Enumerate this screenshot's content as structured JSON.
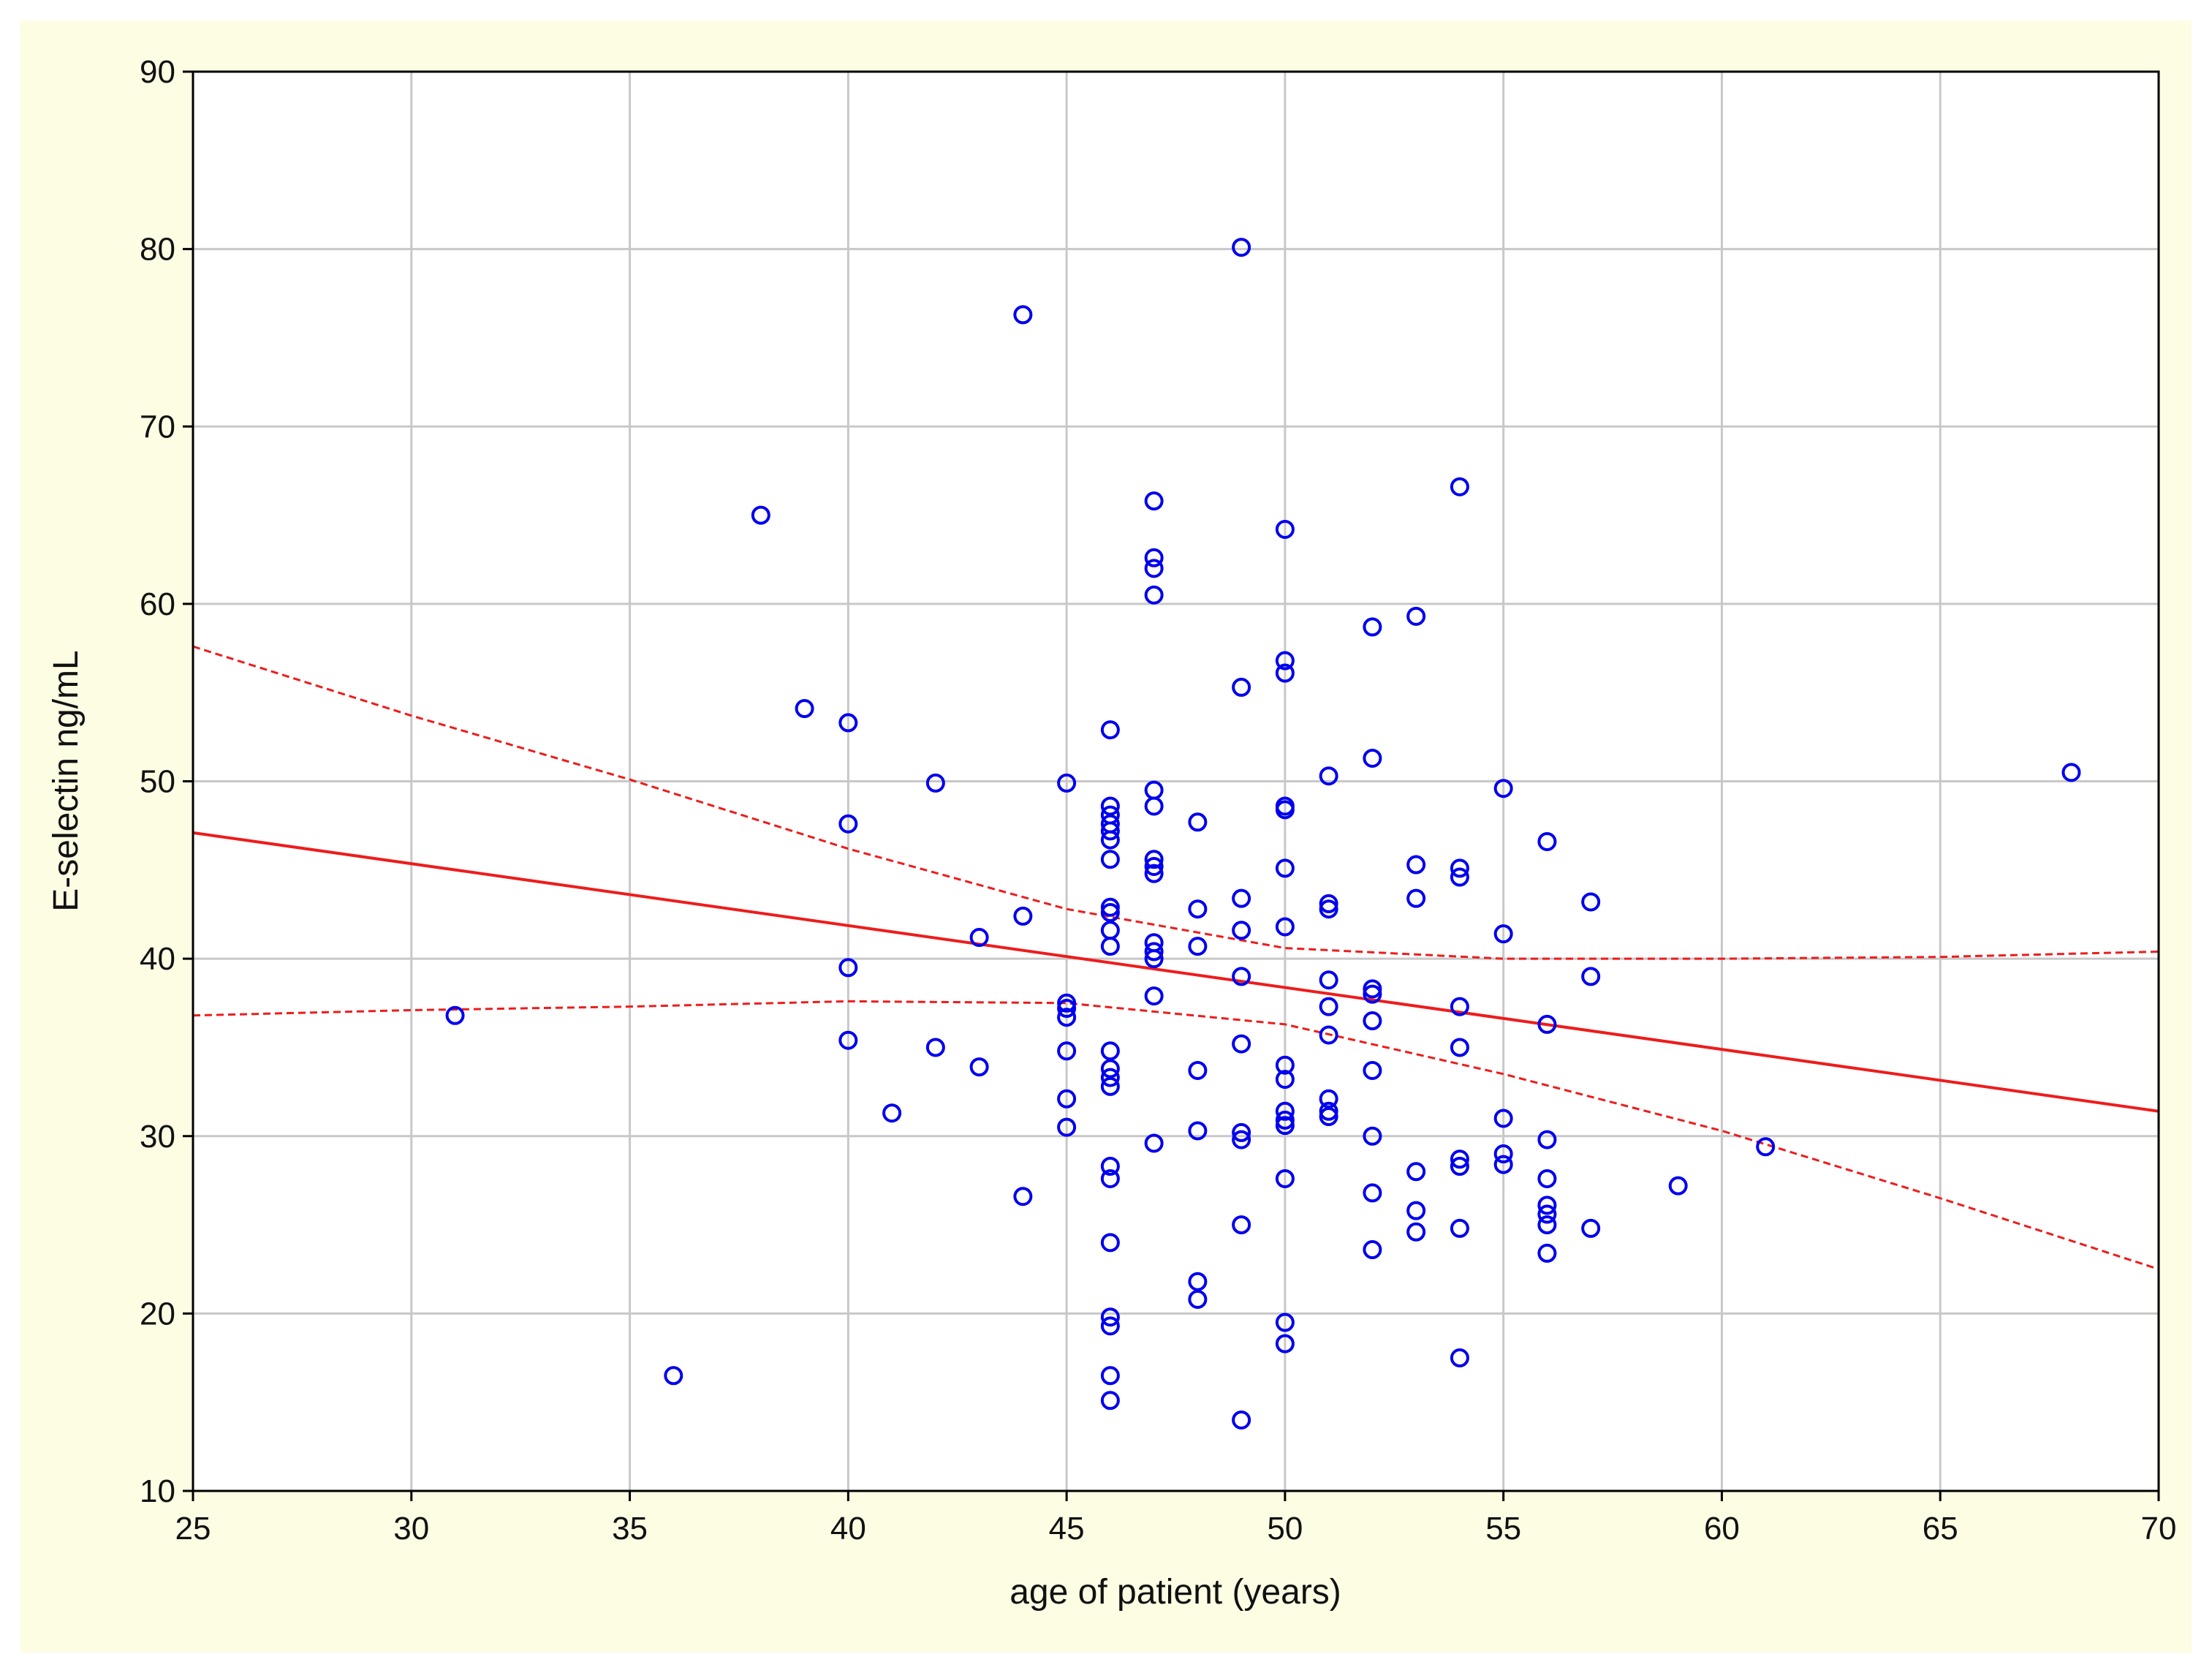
{
  "chart_data": {
    "type": "scatter",
    "title": "",
    "xlabel": "age of patient (years)",
    "ylabel": "E-selectin ng/mL",
    "xlim": [
      25,
      70
    ],
    "ylim": [
      10,
      90
    ],
    "x_ticks": [
      25,
      30,
      35,
      40,
      45,
      50,
      55,
      60,
      65,
      70
    ],
    "y_ticks": [
      10,
      20,
      30,
      40,
      50,
      60,
      70,
      80,
      90
    ],
    "grid": true,
    "colors": {
      "points": "#0000ee",
      "fit": "#ee1c1c",
      "grid": "#c8c8c8",
      "frame_bg": "#fdfde3"
    },
    "series": [
      {
        "name": "observations",
        "points": [
          [
            31,
            36.8
          ],
          [
            36,
            16.5
          ],
          [
            38,
            65
          ],
          [
            39,
            54.1
          ],
          [
            40,
            53.3
          ],
          [
            40,
            47.6
          ],
          [
            40,
            39.5
          ],
          [
            40,
            35.4
          ],
          [
            41,
            31.3
          ],
          [
            42,
            49.9
          ],
          [
            42,
            35
          ],
          [
            43,
            41.2
          ],
          [
            43,
            33.9
          ],
          [
            44,
            76.3
          ],
          [
            44,
            42.4
          ],
          [
            44,
            26.6
          ],
          [
            45,
            49.9
          ],
          [
            45,
            37.5
          ],
          [
            45,
            37.2
          ],
          [
            45,
            36.7
          ],
          [
            45,
            34.8
          ],
          [
            45,
            32.1
          ],
          [
            45,
            30.5
          ],
          [
            46,
            52.9
          ],
          [
            46,
            48.6
          ],
          [
            46,
            48.1
          ],
          [
            46,
            47.6
          ],
          [
            46,
            47.2
          ],
          [
            46,
            46.7
          ],
          [
            46,
            45.6
          ],
          [
            46,
            42.9
          ],
          [
            46,
            42.6
          ],
          [
            46,
            41.6
          ],
          [
            46,
            40.7
          ],
          [
            46,
            34.8
          ],
          [
            46,
            33.8
          ],
          [
            46,
            33.3
          ],
          [
            46,
            32.8
          ],
          [
            46,
            28.3
          ],
          [
            46,
            27.6
          ],
          [
            46,
            24
          ],
          [
            46,
            19.8
          ],
          [
            46,
            19.3
          ],
          [
            46,
            16.5
          ],
          [
            46,
            15.1
          ],
          [
            47,
            65.8
          ],
          [
            47,
            62.6
          ],
          [
            47,
            62
          ],
          [
            47,
            60.5
          ],
          [
            47,
            49.5
          ],
          [
            47,
            48.6
          ],
          [
            47,
            45.6
          ],
          [
            47,
            45.2
          ],
          [
            47,
            44.8
          ],
          [
            47,
            40.9
          ],
          [
            47,
            40.4
          ],
          [
            47,
            40
          ],
          [
            47,
            37.9
          ],
          [
            47,
            29.6
          ],
          [
            48,
            47.7
          ],
          [
            48,
            42.8
          ],
          [
            48,
            40.7
          ],
          [
            48,
            33.7
          ],
          [
            48,
            30.3
          ],
          [
            48,
            21.8
          ],
          [
            48,
            20.8
          ],
          [
            49,
            80.1
          ],
          [
            49,
            55.3
          ],
          [
            49,
            43.4
          ],
          [
            49,
            41.6
          ],
          [
            49,
            39
          ],
          [
            49,
            35.2
          ],
          [
            49,
            30.2
          ],
          [
            49,
            29.8
          ],
          [
            49,
            25
          ],
          [
            49,
            14
          ],
          [
            50,
            64.2
          ],
          [
            50,
            56.8
          ],
          [
            50,
            56.1
          ],
          [
            50,
            48.6
          ],
          [
            50,
            48.4
          ],
          [
            50,
            45.1
          ],
          [
            50,
            41.8
          ],
          [
            50,
            34
          ],
          [
            50,
            33.2
          ],
          [
            50,
            31.4
          ],
          [
            50,
            30.9
          ],
          [
            50,
            30.6
          ],
          [
            50,
            27.6
          ],
          [
            50,
            19.5
          ],
          [
            50,
            18.3
          ],
          [
            51,
            50.3
          ],
          [
            51,
            43.1
          ],
          [
            51,
            42.8
          ],
          [
            51,
            38.8
          ],
          [
            51,
            37.3
          ],
          [
            51,
            35.7
          ],
          [
            51,
            32.1
          ],
          [
            51,
            31.4
          ],
          [
            51,
            31.1
          ],
          [
            52,
            58.7
          ],
          [
            52,
            51.3
          ],
          [
            52,
            38.3
          ],
          [
            52,
            38
          ],
          [
            52,
            36.5
          ],
          [
            52,
            33.7
          ],
          [
            52,
            30
          ],
          [
            52,
            26.8
          ],
          [
            52,
            23.6
          ],
          [
            53,
            59.3
          ],
          [
            53,
            45.3
          ],
          [
            53,
            43.4
          ],
          [
            53,
            28
          ],
          [
            53,
            25.8
          ],
          [
            53,
            24.6
          ],
          [
            54,
            66.6
          ],
          [
            54,
            45.1
          ],
          [
            54,
            44.6
          ],
          [
            54,
            37.3
          ],
          [
            54,
            35
          ],
          [
            54,
            28.7
          ],
          [
            54,
            28.3
          ],
          [
            54,
            24.8
          ],
          [
            54,
            17.5
          ],
          [
            55,
            49.6
          ],
          [
            55,
            41.4
          ],
          [
            55,
            31
          ],
          [
            55,
            29
          ],
          [
            55,
            28.4
          ],
          [
            56,
            46.6
          ],
          [
            56,
            36.3
          ],
          [
            56,
            29.8
          ],
          [
            56,
            27.6
          ],
          [
            56,
            26.1
          ],
          [
            56,
            25.6
          ],
          [
            56,
            25
          ],
          [
            56,
            23.4
          ],
          [
            57,
            43.2
          ],
          [
            57,
            39
          ],
          [
            57,
            24.8
          ],
          [
            59,
            27.2
          ],
          [
            61,
            29.4
          ],
          [
            68,
            50.5
          ]
        ]
      }
    ],
    "fit_line": {
      "x": [
        25,
        70
      ],
      "y": [
        47.1,
        31.4
      ]
    },
    "confidence_band": {
      "x": [
        25,
        30,
        35,
        40,
        45,
        50,
        55,
        60,
        65,
        70
      ],
      "upper": [
        57.6,
        53.7,
        50.1,
        46.2,
        42.8,
        40.6,
        40,
        40,
        40.1,
        40.4
      ],
      "lower": [
        36.8,
        37.1,
        37.3,
        37.6,
        37.5,
        36.3,
        33.5,
        30.3,
        26.5,
        22.5
      ]
    }
  }
}
